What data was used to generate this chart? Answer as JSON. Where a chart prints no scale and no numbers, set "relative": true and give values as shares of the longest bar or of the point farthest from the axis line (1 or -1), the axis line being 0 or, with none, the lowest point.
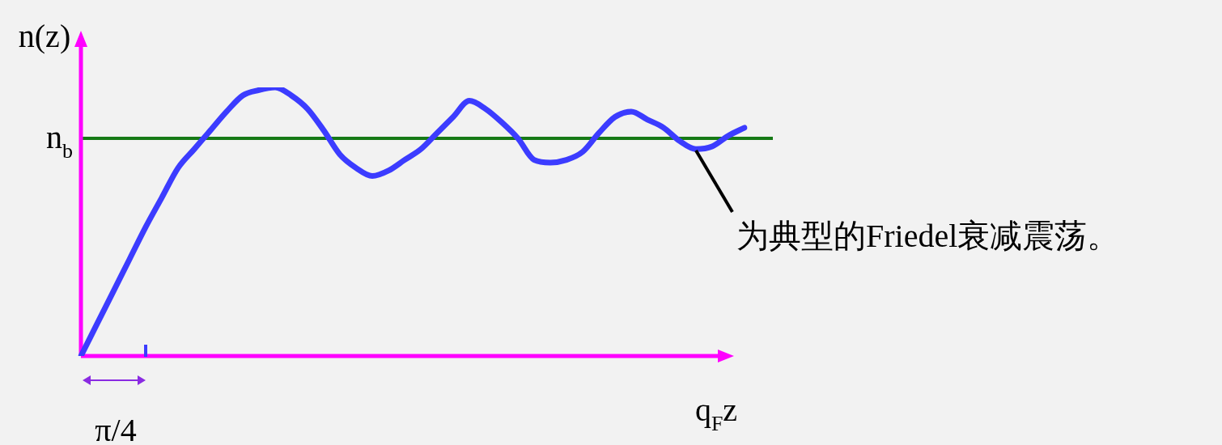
{
  "chart_data": {
    "type": "line",
    "relative": true,
    "xlabel": "q$_{F}$z",
    "ylabel": "n(z)",
    "marker": "none",
    "line_style": "solid",
    "categories": [
      null,
      null,
      null,
      null,
      null,
      null,
      null,
      null,
      null,
      null,
      null,
      null,
      null,
      null,
      null,
      null,
      null,
      null,
      null,
      null,
      null,
      null,
      null,
      null,
      null,
      null,
      null,
      null,
      null,
      null,
      null,
      null,
      null,
      null,
      null,
      null,
      null,
      null,
      null,
      null,
      null,
      null
    ],
    "series": [
      {
        "color": "#3c3cff",
        "values": [
          0,
          0.12,
          0.24,
          0.36,
          0.48,
          0.59,
          0.7,
          0.77,
          0.84,
          0.91,
          0.97,
          0.99,
          1,
          0.97,
          0.92,
          0.84,
          0.75,
          0.7,
          0.67,
          0.69,
          0.73,
          0.77,
          0.83,
          0.89,
          0.95,
          0.92,
          0.87,
          0.81,
          0.73,
          0.72,
          0.73,
          0.76,
          0.83,
          0.89,
          0.91,
          0.88,
          0.85,
          0.8,
          0.77,
          0.78,
          0.82,
          0.85
        ]
      }
    ],
    "ref_lines": [
      {
        "axis": "y",
        "value": 0.81,
        "label": "n$_{b}$",
        "color": "#167a16"
      }
    ],
    "annotations": [
      "π/4",
      "为典型的Friedel衰减震荡。"
    ]
  }
}
